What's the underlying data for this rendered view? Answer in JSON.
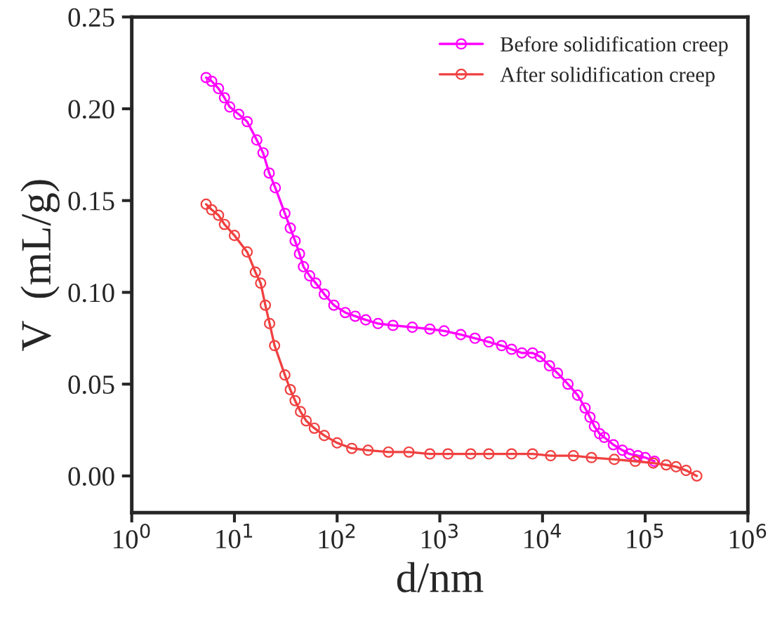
{
  "chart_data": {
    "type": "line",
    "xlabel": "d/nm",
    "ylabel": "V  (mL/g)",
    "log": "x",
    "marker": "circle",
    "line_style": "solid",
    "grid": false,
    "legend": "top right",
    "xlim": [
      1,
      1000000
    ],
    "xticks": [
      {
        "value": 1,
        "label": "10$^{0}$"
      },
      {
        "value": 10,
        "label": "10$^{1}$"
      },
      {
        "value": 100,
        "label": "10$^{2}$"
      },
      {
        "value": 1000,
        "label": "10$^{3}$"
      },
      {
        "value": 10000,
        "label": "10$^{4}$"
      },
      {
        "value": 100000,
        "label": "10$^{5}$"
      },
      {
        "value": 1000000,
        "label": "10$^{6}$"
      }
    ],
    "ylim": [
      -0.02,
      0.25
    ],
    "yticks": [
      {
        "value": 0,
        "label": "0.00"
      },
      {
        "value": 0.05,
        "label": "0.05"
      },
      {
        "value": 0.1,
        "label": "0.10"
      },
      {
        "value": 0.15,
        "label": "0.15"
      },
      {
        "value": 0.2,
        "label": "0.20"
      },
      {
        "value": 0.25,
        "label": "0.25"
      }
    ],
    "series": [
      {
        "name": "Before solidification creep",
        "color": "#ff00ff",
        "x": [
          5.3,
          6,
          7,
          8,
          9,
          11,
          13.3,
          16.5,
          19,
          21.8,
          25,
          31,
          35,
          39,
          43,
          47,
          54,
          62,
          75,
          93,
          120,
          150,
          190,
          250,
          350,
          540,
          800,
          1100,
          1600,
          2200,
          3000,
          4000,
          5000,
          6300,
          8000,
          9500,
          11700,
          14000,
          17700,
          22000,
          26000,
          29000,
          32000,
          36000,
          40000,
          49000,
          60000,
          70000,
          85000,
          100000,
          123000
        ],
        "values": [
          0.217,
          0.215,
          0.211,
          0.206,
          0.201,
          0.197,
          0.193,
          0.183,
          0.176,
          0.165,
          0.157,
          0.143,
          0.135,
          0.128,
          0.121,
          0.114,
          0.109,
          0.105,
          0.099,
          0.093,
          0.089,
          0.087,
          0.085,
          0.083,
          0.082,
          0.081,
          0.08,
          0.079,
          0.077,
          0.075,
          0.073,
          0.071,
          0.069,
          0.067,
          0.067,
          0.065,
          0.06,
          0.056,
          0.05,
          0.044,
          0.037,
          0.032,
          0.027,
          0.023,
          0.021,
          0.017,
          0.014,
          0.012,
          0.011,
          0.01,
          0.008
        ]
      },
      {
        "name": "After solidification creep",
        "color": "#f04040",
        "x": [
          5.3,
          6,
          7,
          8,
          10,
          13.3,
          16,
          18,
          20,
          22,
          24.6,
          31,
          35,
          39,
          44,
          50,
          60,
          75,
          100,
          139,
          200,
          316,
          500,
          800,
          1200,
          2000,
          3000,
          5000,
          8000,
          12000,
          20000,
          30000,
          50000,
          80000,
          120000,
          160000,
          200000,
          250000,
          318000
        ],
        "values": [
          0.148,
          0.145,
          0.142,
          0.137,
          0.131,
          0.122,
          0.111,
          0.105,
          0.093,
          0.083,
          0.071,
          0.055,
          0.047,
          0.041,
          0.035,
          0.03,
          0.026,
          0.022,
          0.018,
          0.015,
          0.014,
          0.013,
          0.013,
          0.012,
          0.012,
          0.012,
          0.012,
          0.012,
          0.012,
          0.011,
          0.011,
          0.01,
          0.009,
          0.008,
          0.007,
          0.006,
          0.005,
          0.003,
          0.0
        ]
      }
    ]
  }
}
